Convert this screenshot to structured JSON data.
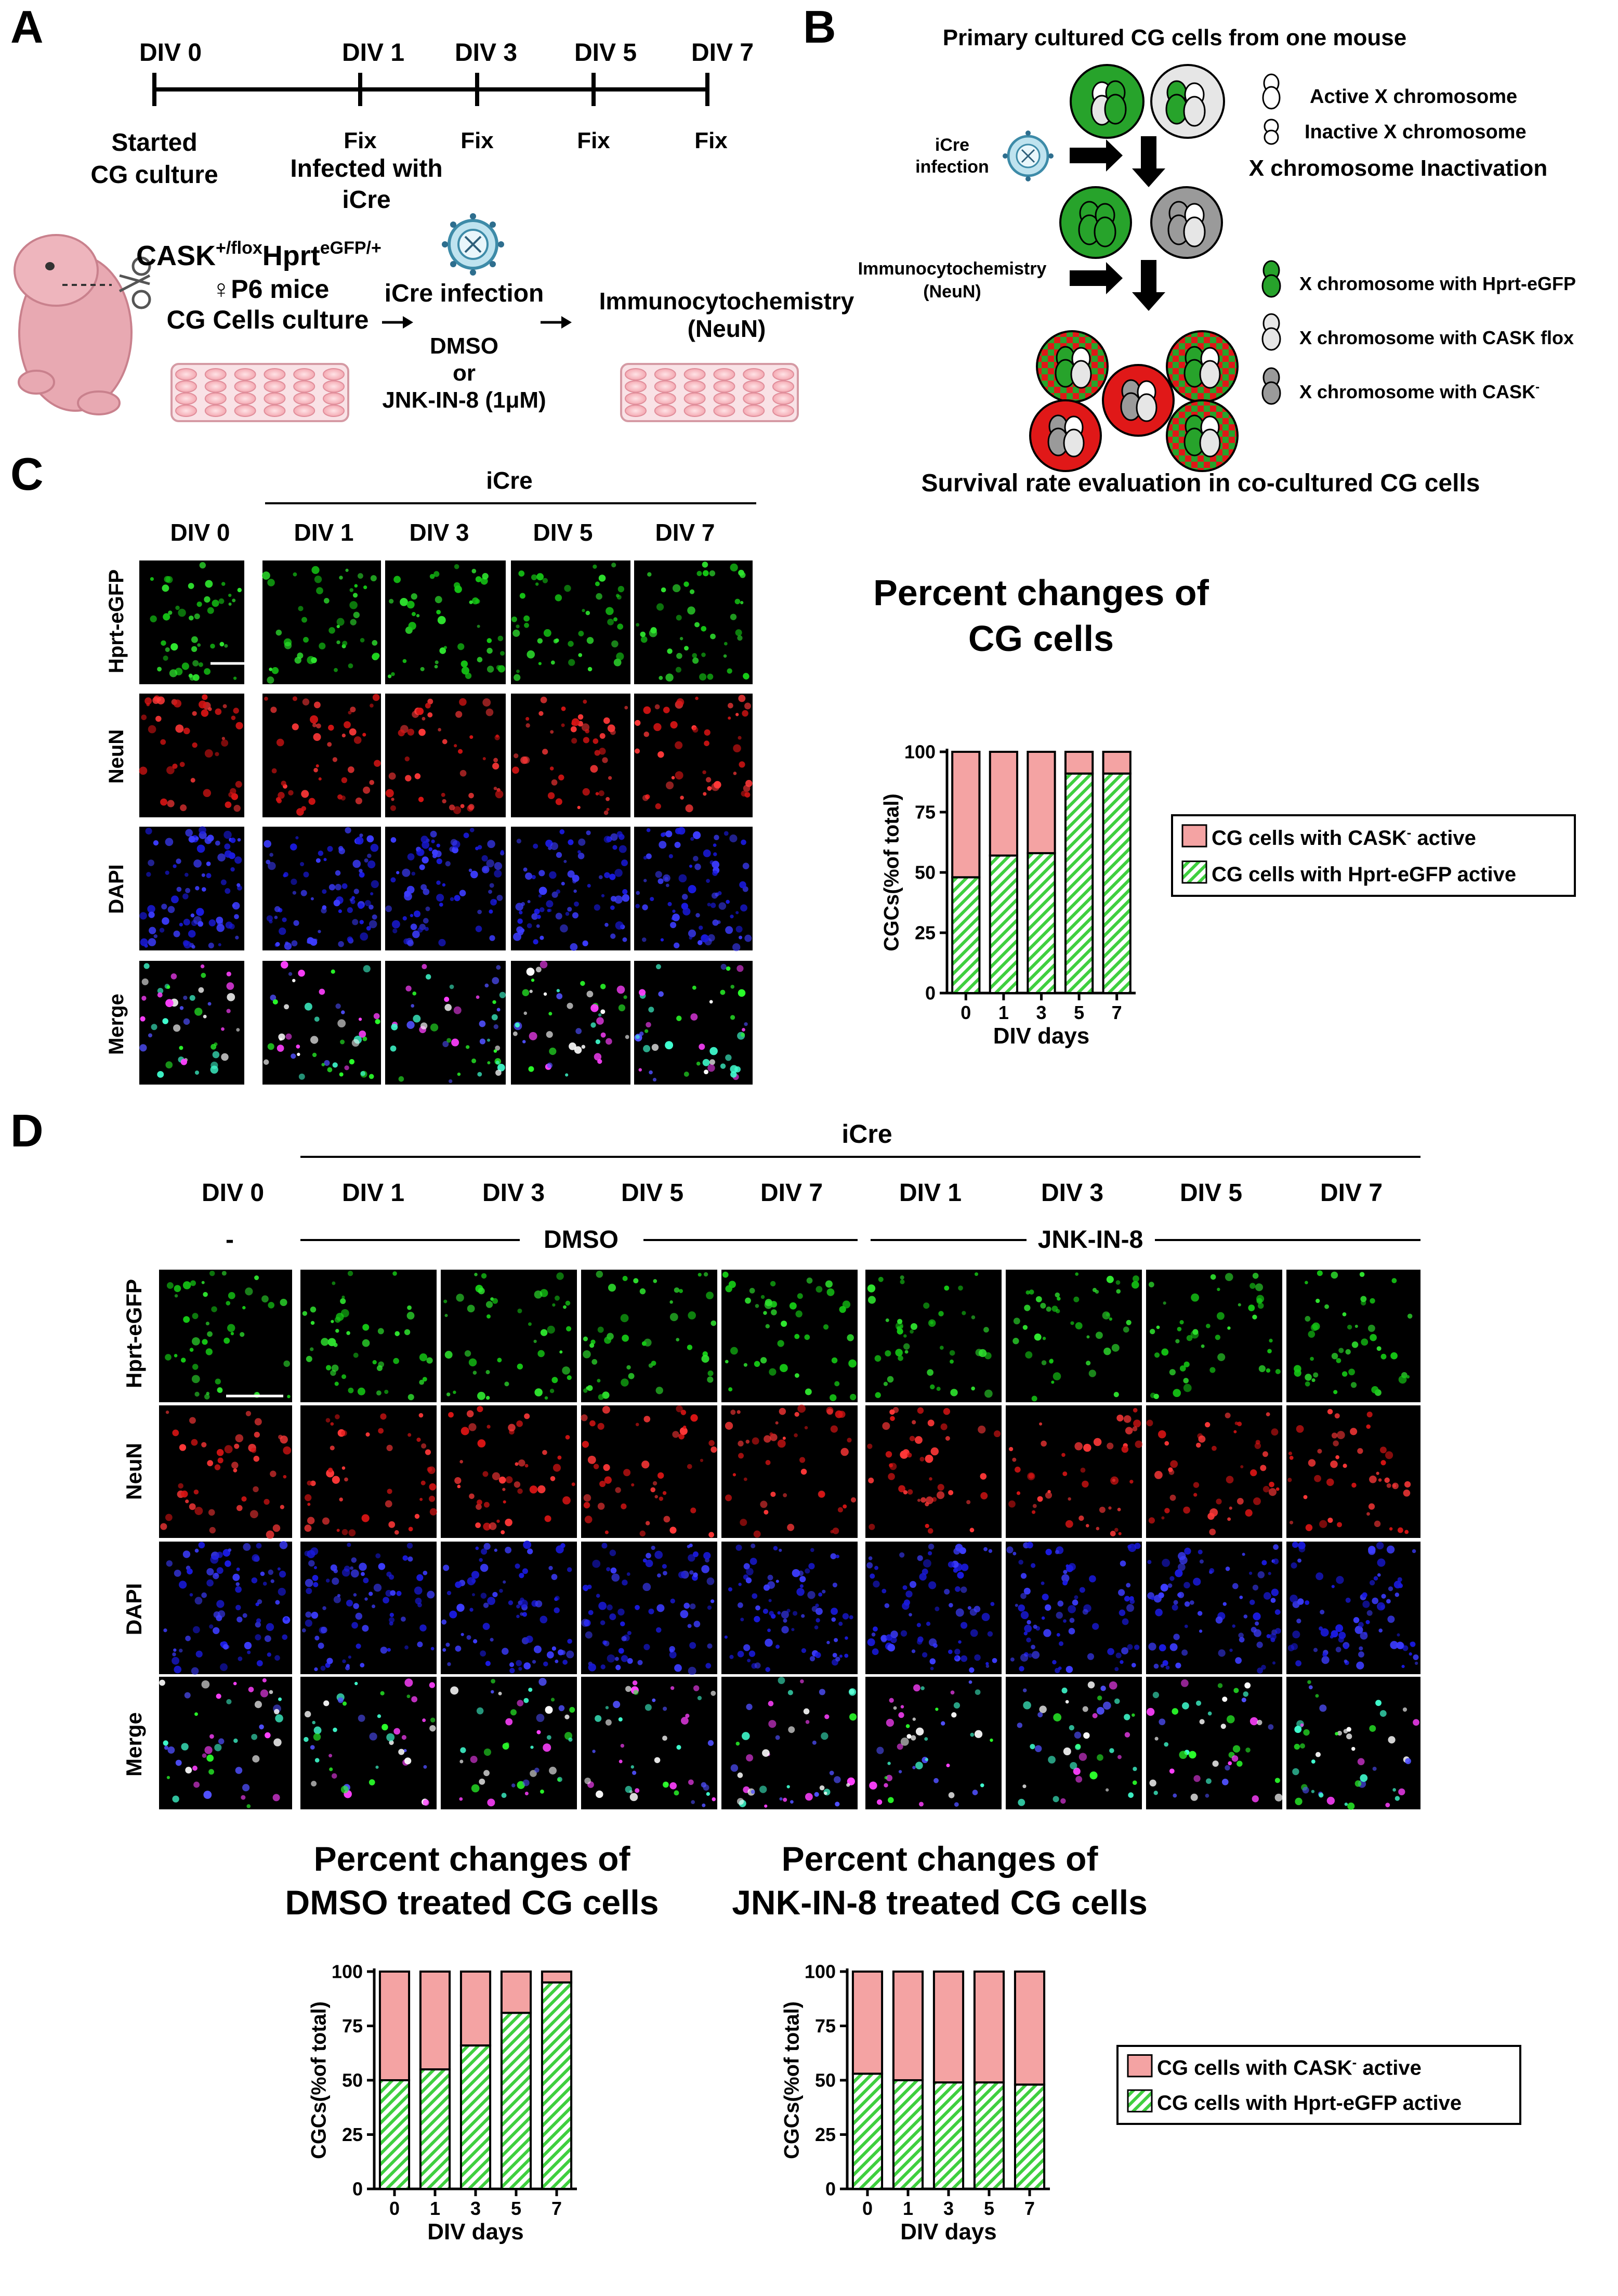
{
  "colors": {
    "pink": "#f4a3a3",
    "green_hatch": "#3fcf3f",
    "red_cell": "#e01818",
    "green_cell": "#27a32b",
    "gray_cell": "#9a9a9a",
    "light_cell": "#e6e6e6",
    "microscopy_bg": "#000000"
  },
  "panel_letters": [
    "A",
    "B",
    "C",
    "D"
  ],
  "panelA": {
    "timeline": {
      "ticks": [
        {
          "label": "DIV 0",
          "note": [
            "Started",
            "CG culture"
          ]
        },
        {
          "label": "DIV 1",
          "note": [
            "Fix",
            "Infected with",
            "iCre"
          ]
        },
        {
          "label": "DIV 3",
          "note": [
            "Fix"
          ]
        },
        {
          "label": "DIV 5",
          "note": [
            "Fix"
          ]
        },
        {
          "label": "DIV 7",
          "note": [
            "Fix"
          ]
        }
      ]
    },
    "genotype_base": "CASK",
    "genotype_sup1": "+/flox",
    "genotype_mid": "Hprt",
    "genotype_sup2": "eGFP/+",
    "mice_label": "♀P6 mice",
    "culture_label": "CG Cells culture",
    "infection_label": "iCre infection",
    "treatment_lines": [
      "DMSO",
      "or",
      "JNK-IN-8 (1μM)"
    ],
    "assay_lines": [
      "Immunocytochemistry",
      "(NeuN)"
    ]
  },
  "panelB": {
    "title": "Primary cultured CG cells from one mouse",
    "icre_lines": [
      "iCre",
      "infection"
    ],
    "ihc_lines": [
      "Immunocytochemistry",
      "(NeuN)"
    ],
    "legend_active": "Active X chromosome",
    "legend_inactive": "Inactive X chromosome",
    "xci_label": "X chromosome Inactivation",
    "legend_hprt": "X chromosome with Hprt-eGFP",
    "legend_flox": "X chromosome with CASK flox",
    "legend_minus_main": "X chromosome with CASK",
    "legend_minus_sup": "-",
    "bottom_title": "Survival rate evaluation in co-cultured CG cells"
  },
  "panelC": {
    "icre_label": "iCre",
    "columns": [
      "DIV 0",
      "DIV 1",
      "DIV 3",
      "DIV 5",
      "DIV 7"
    ],
    "rows": [
      "Hprt-eGFP",
      "NeuN",
      "DAPI",
      "Merge"
    ],
    "chart_title_lines": [
      "Percent changes of",
      "CG cells"
    ]
  },
  "panelD": {
    "icre_label": "iCre",
    "columns": [
      "DIV 0",
      "DIV 1",
      "DIV 3",
      "DIV 5",
      "DIV 7",
      "DIV 1",
      "DIV 3",
      "DIV 5",
      "DIV 7"
    ],
    "dash_label": "-",
    "dmso_label": "DMSO",
    "jnk_label": "JNK-IN-8",
    "rows": [
      "Hprt-eGFP",
      "NeuN",
      "DAPI",
      "Merge"
    ],
    "chart1_title_lines": [
      "Percent changes of",
      "DMSO treated CG cells"
    ],
    "chart2_title_lines": [
      "Percent changes of",
      "JNK-IN-8 treated CG cells"
    ]
  },
  "legend": {
    "cask_main": "CG cells with CASK",
    "cask_sup": "-",
    "cask_tail": " active",
    "hprt": "CG cells with Hprt-eGFP active"
  },
  "chart_data": [
    {
      "id": "C",
      "type": "bar",
      "stacked": true,
      "title": "Percent changes of CG cells",
      "categories": [
        "0",
        "1",
        "3",
        "5",
        "7"
      ],
      "series": [
        {
          "name": "CG cells with Hprt-eGFP active",
          "values": [
            48,
            57,
            58,
            91,
            91
          ]
        },
        {
          "name": "CG cells with CASK- active",
          "values": [
            52,
            43,
            42,
            9,
            9
          ]
        }
      ],
      "xlabel": "DIV days",
      "ylabel": "CGCs(%of total)",
      "yticks": [
        "0",
        "25",
        "50",
        "75",
        "100"
      ],
      "ylim": [
        0,
        100
      ]
    },
    {
      "id": "D1",
      "type": "bar",
      "stacked": true,
      "title": "Percent changes of DMSO treated CG cells",
      "categories": [
        "0",
        "1",
        "3",
        "5",
        "7"
      ],
      "series": [
        {
          "name": "CG cells with Hprt-eGFP active",
          "values": [
            50,
            55,
            66,
            81,
            95
          ]
        },
        {
          "name": "CG cells with CASK- active",
          "values": [
            50,
            45,
            34,
            19,
            5
          ]
        }
      ],
      "xlabel": "DIV days",
      "ylabel": "CGCs(%of total)",
      "yticks": [
        "0",
        "25",
        "50",
        "75",
        "100"
      ],
      "ylim": [
        0,
        100
      ]
    },
    {
      "id": "D2",
      "type": "bar",
      "stacked": true,
      "title": "Percent changes of JNK-IN-8 treated CG cells",
      "categories": [
        "0",
        "1",
        "3",
        "5",
        "7"
      ],
      "series": [
        {
          "name": "CG cells with Hprt-eGFP active",
          "values": [
            53,
            50,
            49,
            49,
            48
          ]
        },
        {
          "name": "CG cells with CASK- active",
          "values": [
            47,
            50,
            51,
            51,
            52
          ]
        }
      ],
      "xlabel": "DIV days",
      "ylabel": "CGCs(%of total)",
      "yticks": [
        "0",
        "25",
        "50",
        "75",
        "100"
      ],
      "ylim": [
        0,
        100
      ]
    }
  ]
}
